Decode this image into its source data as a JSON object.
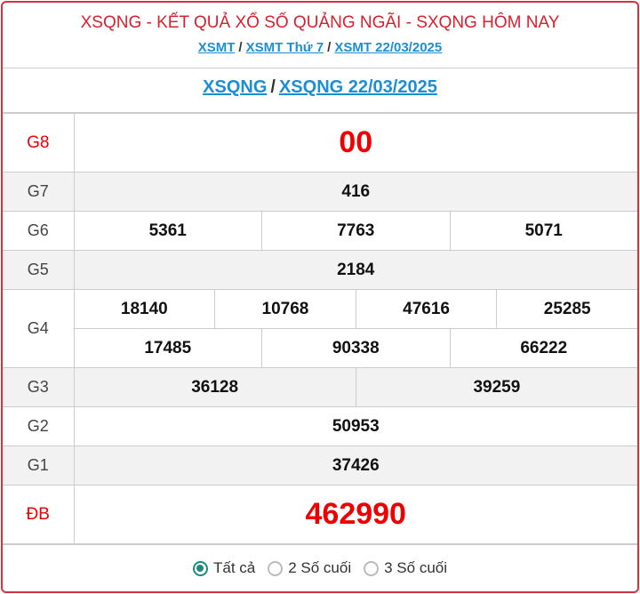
{
  "header": {
    "title": "XSQNG - KẾT QUẢ XỔ SỐ QUẢNG NGÃI - SXQNG HÔM NAY",
    "breadcrumbs": [
      "XSMT",
      "XSMT Thứ 7",
      "XSMT 22/03/2025"
    ],
    "sub_links": [
      "XSQNG",
      "XSQNG 22/03/2025"
    ],
    "separator": "/"
  },
  "results": [
    {
      "label": "G8",
      "numbers": [
        "00"
      ]
    },
    {
      "label": "G7",
      "numbers": [
        "416"
      ]
    },
    {
      "label": "G6",
      "numbers": [
        "5361",
        "7763",
        "5071"
      ]
    },
    {
      "label": "G5",
      "numbers": [
        "2184"
      ]
    },
    {
      "label": "G4",
      "numbers": [
        "18140",
        "10768",
        "47616",
        "25285"
      ],
      "numbers2": [
        "17485",
        "90338",
        "66222"
      ]
    },
    {
      "label": "G3",
      "numbers": [
        "36128",
        "39259"
      ]
    },
    {
      "label": "G2",
      "numbers": [
        "50953"
      ]
    },
    {
      "label": "G1",
      "numbers": [
        "37426"
      ]
    },
    {
      "label": "ĐB",
      "numbers": [
        "462990"
      ]
    }
  ],
  "filter": {
    "options": [
      "Tất cả",
      "2 Số cuối",
      "3 Số cuối"
    ],
    "selected": "Tất cả"
  },
  "colors": {
    "accent": "#d9323f",
    "link": "#1a8fd6",
    "prize_red": "#ee0000",
    "radio": "#1b8a7f"
  }
}
